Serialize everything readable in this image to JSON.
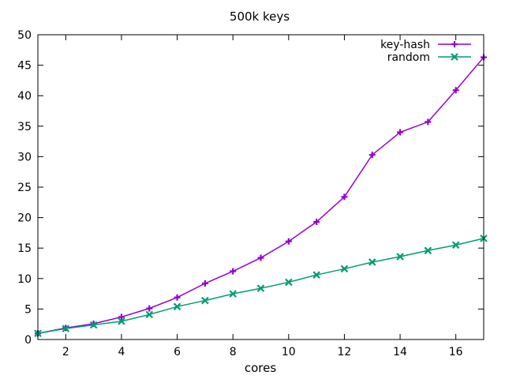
{
  "chart_data": {
    "type": "line",
    "title": "500k keys",
    "xlabel": "cores",
    "ylabel": "",
    "xlim": [
      1,
      17
    ],
    "ylim": [
      0,
      50
    ],
    "x_ticks": [
      2,
      4,
      6,
      8,
      10,
      12,
      14,
      16
    ],
    "y_ticks": [
      0,
      5,
      10,
      15,
      20,
      25,
      30,
      35,
      40,
      45,
      50
    ],
    "grid": false,
    "legend": "top-right",
    "x": [
      1,
      2,
      3,
      4,
      5,
      6,
      7,
      8,
      9,
      10,
      11,
      12,
      13,
      14,
      15,
      16,
      17
    ],
    "series": [
      {
        "name": "key-hash",
        "color": "#9400d3",
        "marker": "plus",
        "values": [
          1.0,
          1.9,
          2.6,
          3.7,
          5.1,
          6.9,
          9.2,
          11.2,
          13.4,
          16.1,
          19.3,
          23.4,
          30.3,
          34.0,
          35.7,
          40.9,
          46.3
        ]
      },
      {
        "name": "random",
        "color": "#009e73",
        "marker": "cross",
        "values": [
          1.0,
          1.8,
          2.4,
          3.0,
          4.1,
          5.4,
          6.4,
          7.5,
          8.4,
          9.4,
          10.6,
          11.6,
          12.7,
          13.6,
          14.6,
          15.5,
          16.6
        ]
      }
    ]
  }
}
